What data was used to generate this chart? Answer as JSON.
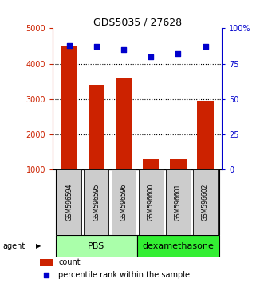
{
  "title": "GDS5035 / 27628",
  "samples": [
    "GSM596594",
    "GSM596595",
    "GSM596596",
    "GSM596600",
    "GSM596601",
    "GSM596602"
  ],
  "counts": [
    4500,
    3400,
    3600,
    1300,
    1300,
    2950
  ],
  "percentiles": [
    88,
    87,
    85,
    80,
    82,
    87
  ],
  "left_ylim": [
    1000,
    5000
  ],
  "right_ylim": [
    0,
    100
  ],
  "left_yticks": [
    1000,
    2000,
    3000,
    4000,
    5000
  ],
  "right_yticks": [
    0,
    25,
    50,
    75,
    100
  ],
  "right_yticklabels": [
    "0",
    "25",
    "50",
    "75",
    "100%"
  ],
  "bar_color": "#CC2200",
  "dot_color": "#0000CC",
  "legend_count_label": "count",
  "legend_pct_label": "percentile rank within the sample",
  "sample_box_color": "#CCCCCC",
  "pbs_color": "#AAFFAA",
  "dexa_color": "#33EE33",
  "grid_lines": [
    2000,
    3000,
    4000
  ]
}
